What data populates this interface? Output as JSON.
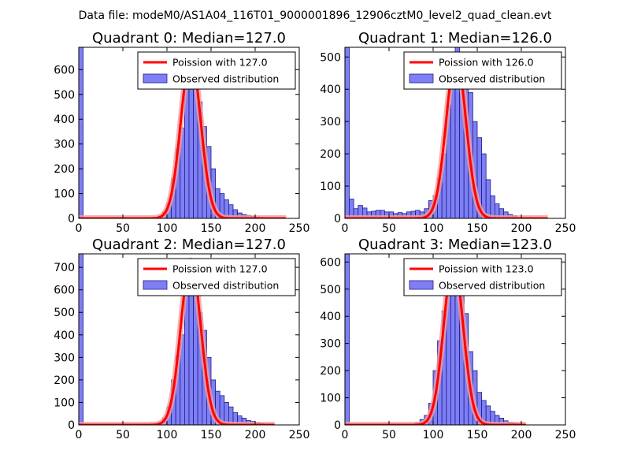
{
  "suptitle": "Data file: modeM0/AS1A04_116T01_9000001896_12906cztM0_level2_quad_clean.evt",
  "colors": {
    "hist_fill": "#7f7ff5",
    "hist_edge": "#1d1d8a",
    "poisson": "#ff0000",
    "poisson_halo": "#f3a0a0"
  },
  "chart_data": [
    {
      "type": "bar",
      "title": "Quadrant 0: Median=127.0",
      "median": 127,
      "xlim": [
        0,
        250
      ],
      "ylim": [
        0,
        690
      ],
      "xticks": [
        0,
        50,
        100,
        150,
        200,
        250
      ],
      "yticks": [
        0,
        100,
        200,
        300,
        400,
        500,
        600
      ],
      "bin_width": 5,
      "bins_start": [
        0,
        90,
        95,
        100,
        105,
        110,
        115,
        120,
        125,
        130,
        135,
        140,
        145,
        150,
        155,
        160,
        165,
        170,
        175,
        180,
        185,
        190,
        195,
        200,
        205,
        210
      ],
      "counts": [
        690,
        10,
        25,
        60,
        160,
        280,
        365,
        560,
        640,
        550,
        470,
        370,
        290,
        200,
        120,
        100,
        75,
        55,
        35,
        22,
        15,
        12,
        8,
        6,
        4,
        2
      ],
      "poisson_label": "Poission with 127.0",
      "poisson_peak": 650,
      "poisson_xmax": 235,
      "hist_label": "Observed distribution"
    },
    {
      "type": "bar",
      "title": "Quadrant 1: Median=126.0",
      "median": 126,
      "xlim": [
        0,
        250
      ],
      "ylim": [
        0,
        530
      ],
      "xticks": [
        0,
        50,
        100,
        150,
        200,
        250
      ],
      "yticks": [
        0,
        100,
        200,
        300,
        400,
        500
      ],
      "bin_width": 5,
      "bins_start": [
        0,
        5,
        10,
        15,
        20,
        25,
        30,
        35,
        40,
        45,
        50,
        55,
        60,
        65,
        70,
        75,
        80,
        85,
        90,
        95,
        100,
        105,
        110,
        115,
        120,
        125,
        130,
        135,
        140,
        145,
        150,
        155,
        160,
        165,
        170,
        175,
        180,
        185,
        190
      ],
      "counts": [
        530,
        60,
        30,
        40,
        32,
        20,
        22,
        25,
        25,
        20,
        20,
        15,
        18,
        15,
        20,
        22,
        25,
        20,
        30,
        55,
        70,
        125,
        200,
        350,
        430,
        540,
        490,
        420,
        390,
        300,
        250,
        200,
        120,
        70,
        45,
        30,
        20,
        12,
        8
      ],
      "poisson_label": "Poission with 126.0",
      "poisson_peak": 500,
      "poisson_xmax": 230,
      "hist_label": "Observed distribution"
    },
    {
      "type": "bar",
      "title": "Quadrant 2: Median=127.0",
      "median": 127,
      "xlim": [
        0,
        250
      ],
      "ylim": [
        0,
        760
      ],
      "xticks": [
        0,
        50,
        100,
        150,
        200,
        250
      ],
      "yticks": [
        0,
        100,
        200,
        300,
        400,
        500,
        600,
        700
      ],
      "bin_width": 5,
      "bins_start": [
        0,
        90,
        95,
        100,
        105,
        110,
        115,
        120,
        125,
        130,
        135,
        140,
        145,
        150,
        155,
        160,
        165,
        170,
        175,
        180,
        185,
        190,
        195,
        200,
        205,
        210,
        215
      ],
      "counts": [
        760,
        10,
        30,
        80,
        200,
        310,
        400,
        680,
        710,
        640,
        500,
        420,
        300,
        200,
        150,
        130,
        100,
        80,
        55,
        40,
        30,
        20,
        15,
        10,
        6,
        4,
        2
      ],
      "poisson_label": "Poission with 127.0",
      "poisson_peak": 730,
      "poisson_xmax": 222,
      "hist_label": "Observed distribution"
    },
    {
      "type": "bar",
      "title": "Quadrant 3: Median=123.0",
      "median": 123,
      "xlim": [
        0,
        250
      ],
      "ylim": [
        0,
        630
      ],
      "xticks": [
        0,
        50,
        100,
        150,
        200,
        250
      ],
      "yticks": [
        0,
        100,
        200,
        300,
        400,
        500,
        600
      ],
      "bin_width": 5,
      "bins_start": [
        0,
        80,
        85,
        90,
        95,
        100,
        105,
        110,
        115,
        120,
        125,
        130,
        135,
        140,
        145,
        150,
        155,
        160,
        165,
        170,
        175,
        180,
        185,
        190,
        195,
        200
      ],
      "counts": [
        630,
        8,
        20,
        35,
        80,
        200,
        310,
        420,
        550,
        600,
        590,
        480,
        410,
        270,
        200,
        120,
        90,
        70,
        50,
        35,
        25,
        15,
        10,
        6,
        4,
        2
      ],
      "poisson_label": "Poission with 123.0",
      "poisson_peak": 600,
      "poisson_xmax": 205,
      "hist_label": "Observed distribution"
    }
  ]
}
